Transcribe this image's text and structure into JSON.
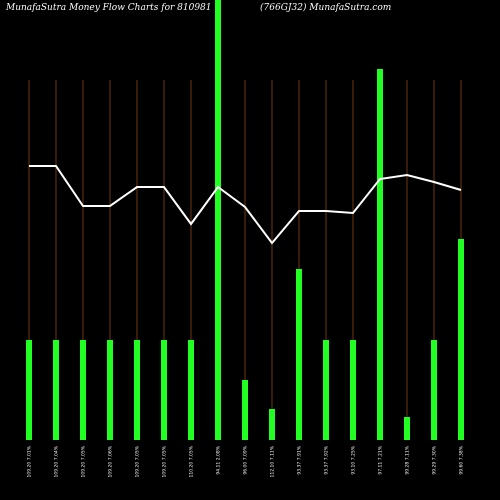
{
  "chart_data": {
    "type": "bar",
    "title": "MunafaSutra  Money Flow  Charts for 810981",
    "subtitle": "(766GJ32) MunafaSutra.com",
    "categories": [
      "109.20 7.01%",
      "109.20 7.04%",
      "109.20 7.05%",
      "109.20 7.06%",
      "109.20 7.05%",
      "109.20 7.05%",
      "110.20 7.05%",
      "94.11 2.08%",
      "96.00 7.09%",
      "112.10 7.11%",
      "93.37 7.91%",
      "93.37 7.92%",
      "93.10 7.25%",
      "97.11 7.21%",
      "99.28 7.11%",
      "99.29 7.30%",
      "99.60 7.38%"
    ],
    "values": [
      100,
      100,
      100,
      100,
      100,
      100,
      100,
      440,
      60,
      31,
      171,
      100,
      100,
      371,
      23,
      100,
      201
    ],
    "line_values": [
      274,
      274,
      234,
      234,
      253,
      253,
      216,
      253,
      233,
      197,
      229,
      229,
      227,
      261,
      265,
      258,
      250
    ],
    "color": "#22ff22",
    "line_color": "#ffffff",
    "category_line_color": "#8b4513",
    "ylim": [
      0,
      440
    ]
  }
}
